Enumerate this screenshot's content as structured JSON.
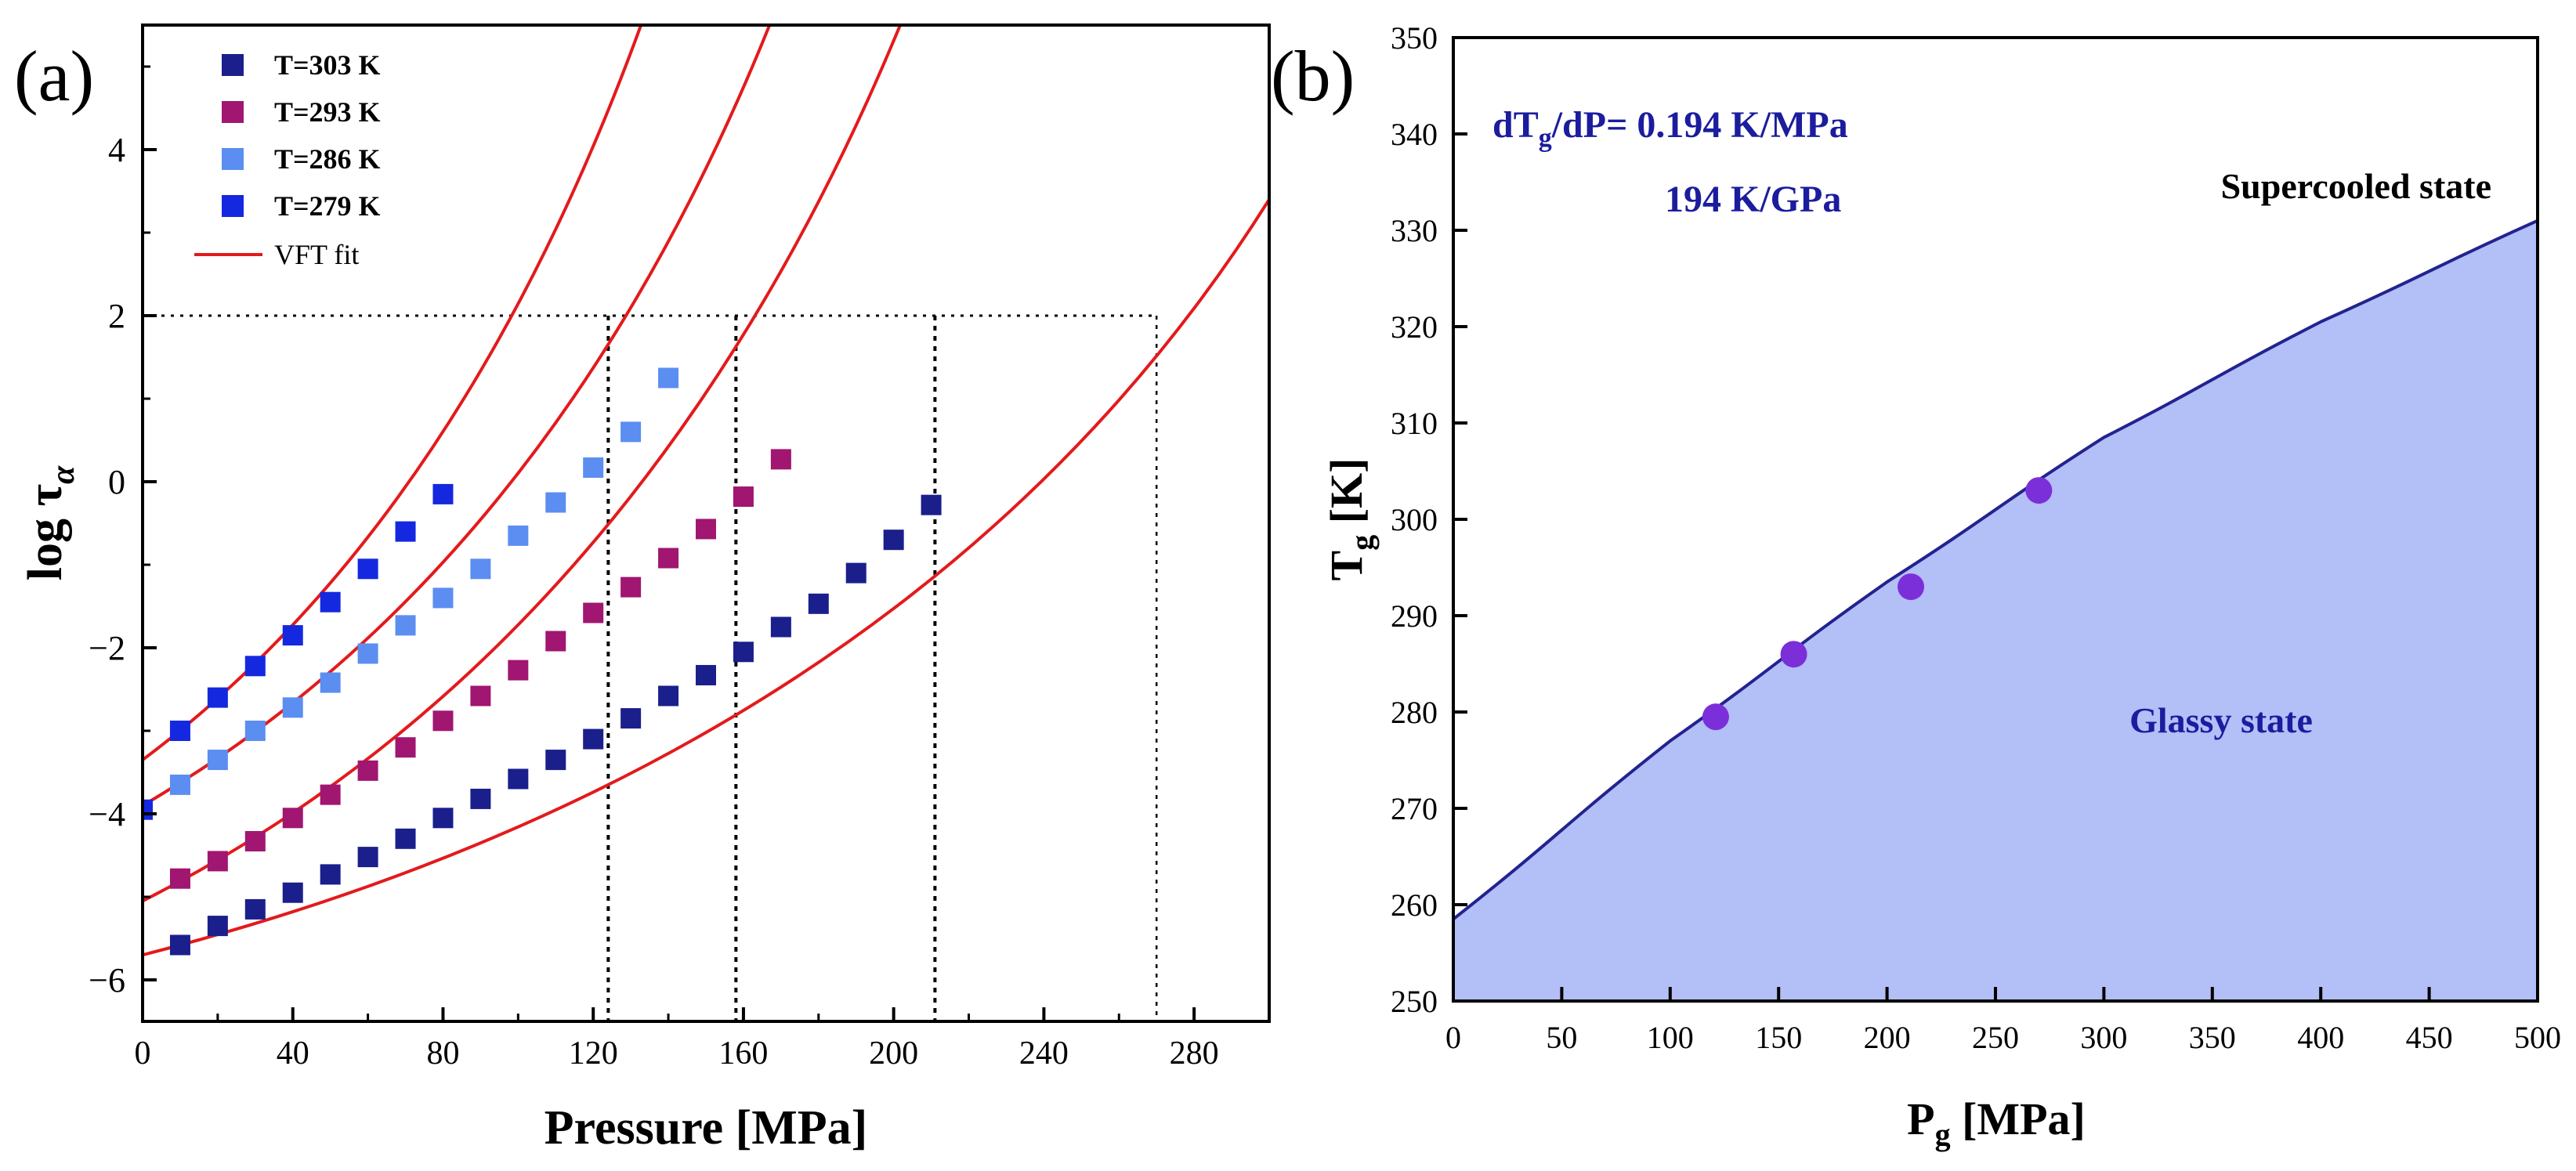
{
  "chart_data": [
    {
      "panel": "(a)",
      "type": "scatter",
      "title": "",
      "xlabel": "Pressure [MPa]",
      "ylabel": "log τ",
      "ylabel_sub": "α",
      "xlim": [
        0,
        300
      ],
      "ylim": [
        -6.5,
        5.5
      ],
      "xticks": [
        0,
        40,
        80,
        120,
        160,
        200,
        240,
        280
      ],
      "yticks": [
        -6,
        -4,
        -2,
        0,
        2,
        4
      ],
      "ytick_labels": [
        "−6",
        "−4",
        "−2",
        "0",
        "2",
        "4"
      ],
      "legend": {
        "placement": "top-left",
        "fit_label": "VFT fit",
        "fit_color": "#e31a1c",
        "entries": [
          {
            "label": "T=303 K",
            "color": "#1a1f8c"
          },
          {
            "label": "T=293 K",
            "color": "#a01670"
          },
          {
            "label": "T=286 K",
            "color": "#5b8ef0"
          },
          {
            "label": "T=279 K",
            "color": "#1428e0"
          }
        ]
      },
      "series": [
        {
          "name": "T=303 K",
          "color": "#1a1f8c",
          "x": [
            10,
            20,
            30,
            40,
            50,
            60,
            70,
            80,
            90,
            100,
            110,
            120,
            130,
            140,
            150,
            160,
            170,
            180,
            190,
            200,
            210
          ],
          "y": [
            -5.58,
            -5.35,
            -5.15,
            -4.95,
            -4.73,
            -4.52,
            -4.3,
            -4.05,
            -3.82,
            -3.58,
            -3.35,
            -3.1,
            -2.85,
            -2.58,
            -2.33,
            -2.05,
            -1.75,
            -1.47,
            -1.1,
            -0.7,
            -0.28
          ]
        },
        {
          "name": "T=293 K",
          "color": "#a01670",
          "x": [
            10,
            20,
            30,
            40,
            50,
            60,
            70,
            80,
            90,
            100,
            110,
            120,
            130,
            140,
            150,
            160,
            170
          ],
          "y": [
            -4.78,
            -4.57,
            -4.33,
            -4.05,
            -3.77,
            -3.48,
            -3.2,
            -2.88,
            -2.58,
            -2.27,
            -1.92,
            -1.58,
            -1.27,
            -0.92,
            -0.57,
            -0.18,
            0.27
          ]
        },
        {
          "name": "T=286 K",
          "color": "#5b8ef0",
          "x": [
            10,
            20,
            30,
            40,
            50,
            60,
            70,
            80,
            90,
            100,
            110,
            120,
            130,
            140
          ],
          "y": [
            -3.65,
            -3.35,
            -3.0,
            -2.72,
            -2.42,
            -2.07,
            -1.73,
            -1.4,
            -1.05,
            -0.65,
            -0.25,
            0.17,
            0.6,
            1.25
          ]
        },
        {
          "name": "T=279 K",
          "color": "#1428e0",
          "x": [
            0,
            10,
            20,
            30,
            40,
            50,
            60,
            70,
            80
          ],
          "y": [
            -3.95,
            -3.0,
            -2.6,
            -2.22,
            -1.85,
            -1.45,
            -1.05,
            -0.6,
            -0.15
          ]
        }
      ],
      "fits": [
        {
          "name": "T=303 K",
          "x0": 0,
          "y0": -5.7,
          "x1": 300,
          "y1": 3.4,
          "curvature": 0.38
        },
        {
          "name": "T=293 K",
          "x0": 0,
          "y0": -5.05,
          "x1": 210,
          "y1": 6.45,
          "curvature": 0.35
        },
        {
          "name": "T=286 K",
          "x0": 0,
          "y0": -3.9,
          "x1": 175,
          "y1": 6.45,
          "curvature": 0.33
        },
        {
          "name": "T=279 K",
          "x0": 0,
          "y0": -3.35,
          "x1": 140,
          "y1": 6.45,
          "curvature": 0.3
        }
      ],
      "reference_lines": {
        "y": 2,
        "x_end": 270,
        "x_marks": [
          124,
          158,
          211,
          270
        ]
      }
    },
    {
      "panel": "(b)",
      "type": "area",
      "title": "",
      "xlabel": "P",
      "xlabel_sub": "g",
      "xlabel_unit": " [MPa]",
      "ylabel": "T",
      "ylabel_sub": "g",
      "ylabel_unit": " [K]",
      "xlim": [
        0,
        500
      ],
      "ylim": [
        250,
        350
      ],
      "xticks": [
        0,
        50,
        100,
        150,
        200,
        250,
        300,
        350,
        400,
        450,
        500
      ],
      "yticks": [
        250,
        260,
        270,
        280,
        290,
        300,
        310,
        320,
        330,
        340,
        350
      ],
      "fit_line": {
        "x": [
          0,
          100,
          200,
          300,
          400,
          500
        ],
        "y": [
          258.5,
          277.0,
          293.5,
          308.5,
          320.5,
          331.0
        ],
        "color": "#23238f"
      },
      "fill_color": "#b3bff7",
      "points": {
        "x": [
          121,
          157,
          211,
          270
        ],
        "y": [
          279.5,
          286.0,
          293.0,
          303.0
        ],
        "color": "#7b2fd9"
      },
      "annotations": {
        "slope_label_main": "dT",
        "slope_label_sub": "g",
        "slope_label_rest": "/dP= 0.194 K/MPa",
        "slope_label_2": "194 K/GPa",
        "region_above": "Supercooled state",
        "region_below": "Glassy state",
        "annotation_color": "#1c1c9e"
      }
    }
  ]
}
